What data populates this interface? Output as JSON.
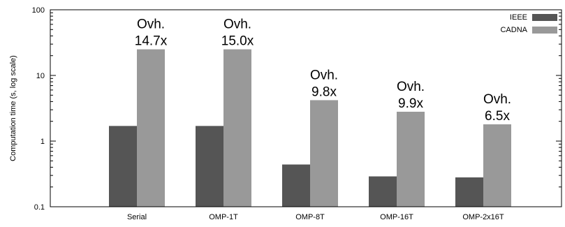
{
  "chart_data": {
    "type": "bar",
    "scale": "log",
    "ylabel": "Computation time (s, log scale)",
    "ylim": [
      0.1,
      100
    ],
    "yticks": [
      "0.1",
      "1",
      "10",
      "100"
    ],
    "categories": [
      "Serial",
      "OMP-1T",
      "OMP-8T",
      "OMP-16T",
      "OMP-2x16T"
    ],
    "series": [
      {
        "name": "IEEE",
        "color": "#555555",
        "values": [
          1.7,
          1.7,
          0.44,
          0.29,
          0.28
        ]
      },
      {
        "name": "CADNA",
        "color": "#999999",
        "values": [
          25,
          25,
          4.2,
          2.8,
          1.8
        ]
      }
    ],
    "annotations": [
      {
        "line1": "Ovh.",
        "line2": "14.7x"
      },
      {
        "line1": "Ovh.",
        "line2": "15.0x"
      },
      {
        "line1": "Ovh.",
        "line2": "9.8x"
      },
      {
        "line1": "Ovh.",
        "line2": "9.9x"
      },
      {
        "line1": "Ovh.",
        "line2": "6.5x"
      }
    ],
    "legend_position": "top-right",
    "grid": false
  }
}
